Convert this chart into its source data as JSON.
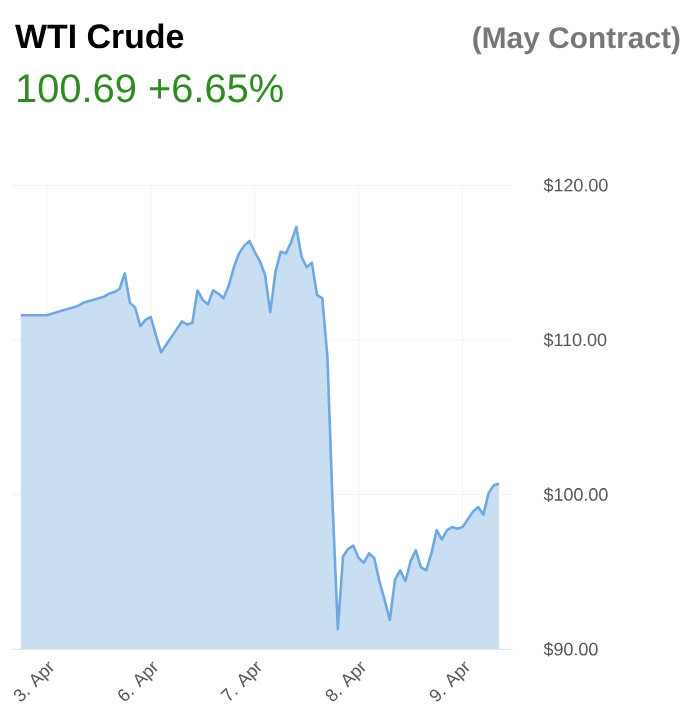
{
  "chart_data": {
    "type": "area",
    "title": "WTI Crude",
    "subtitle": "100.69 +6.65%",
    "annotations": [
      "(May Contract)"
    ],
    "categories": [
      null,
      null,
      null,
      null,
      null,
      "3. Apr",
      null,
      null,
      null,
      null,
      null,
      null,
      null,
      null,
      null,
      null,
      null,
      null,
      null,
      null,
      null,
      null,
      null,
      null,
      null,
      "6. Apr",
      null,
      null,
      null,
      null,
      null,
      null,
      null,
      null,
      null,
      null,
      null,
      null,
      null,
      null,
      null,
      null,
      null,
      null,
      null,
      "7. Apr",
      null,
      null,
      null,
      null,
      null,
      null,
      null,
      null,
      null,
      null,
      null,
      null,
      null,
      null,
      null,
      null,
      null,
      null,
      null,
      "8. Apr",
      null,
      null,
      null,
      null,
      null,
      null,
      null,
      null,
      null,
      null,
      null,
      null,
      null,
      null,
      null,
      null,
      null,
      null,
      null,
      "9. Apr",
      null,
      null,
      null,
      null,
      null,
      null,
      null
    ],
    "series": [
      {
        "color": "#6fa8e0",
        "values": [
          111.6,
          111.6,
          111.6,
          111.6,
          111.6,
          111.6,
          111.7,
          111.8,
          111.9,
          112.0,
          112.1,
          112.2,
          112.4,
          112.5,
          112.6,
          112.7,
          112.8,
          113.0,
          113.1,
          113.3,
          114.3,
          112.4,
          112.1,
          110.9,
          111.3,
          111.5,
          110.3,
          109.2,
          109.7,
          110.2,
          110.7,
          111.2,
          111.0,
          111.1,
          113.2,
          112.6,
          112.3,
          113.2,
          113.0,
          112.7,
          113.5,
          114.7,
          115.6,
          116.1,
          116.4,
          115.7,
          115.1,
          114.2,
          111.8,
          114.4,
          115.7,
          115.6,
          116.3,
          117.3,
          115.4,
          114.7,
          115.0,
          112.9,
          112.7,
          108.9,
          99.3,
          91.3,
          96.0,
          96.5,
          96.7,
          95.9,
          95.6,
          96.2,
          95.9,
          94.4,
          93.2,
          91.9,
          94.5,
          95.1,
          94.4,
          95.7,
          96.4,
          95.3,
          95.1,
          96.2,
          97.7,
          97.1,
          97.7,
          97.9,
          97.8,
          97.9,
          98.4,
          98.9,
          99.2,
          98.7,
          100.1,
          100.6,
          100.7
        ]
      }
    ],
    "ylim": [
      90,
      120
    ],
    "yticks": [
      {
        "value": 90,
        "label": "$90.00"
      },
      {
        "value": 100,
        "label": "$100.00"
      },
      {
        "value": 110,
        "label": "$110.00"
      },
      {
        "value": 120,
        "label": "$120.00"
      }
    ],
    "grid": true
  }
}
